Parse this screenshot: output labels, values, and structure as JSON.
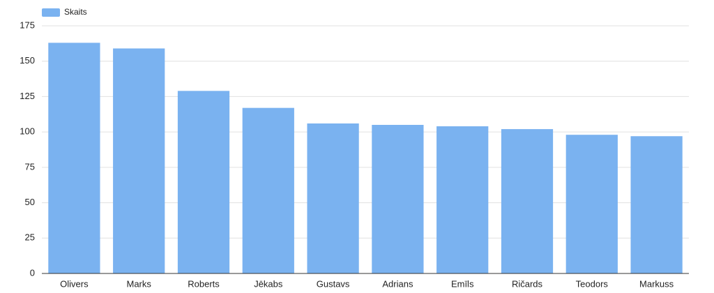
{
  "chart_data": {
    "type": "bar",
    "categories": [
      "Olivers",
      "Marks",
      "Roberts",
      "Jēkabs",
      "Gustavs",
      "Adrians",
      "Emīls",
      "Ričards",
      "Teodors",
      "Markuss"
    ],
    "series": [
      {
        "name": "Skaits",
        "color": "#7ab2f0",
        "values": [
          163,
          159,
          129,
          117,
          106,
          105,
          104,
          102,
          98,
          97
        ]
      }
    ],
    "ylim": [
      0,
      175
    ],
    "yticks": [
      0,
      25,
      50,
      75,
      100,
      125,
      150,
      175
    ],
    "grid": true,
    "legend": "top-left"
  }
}
